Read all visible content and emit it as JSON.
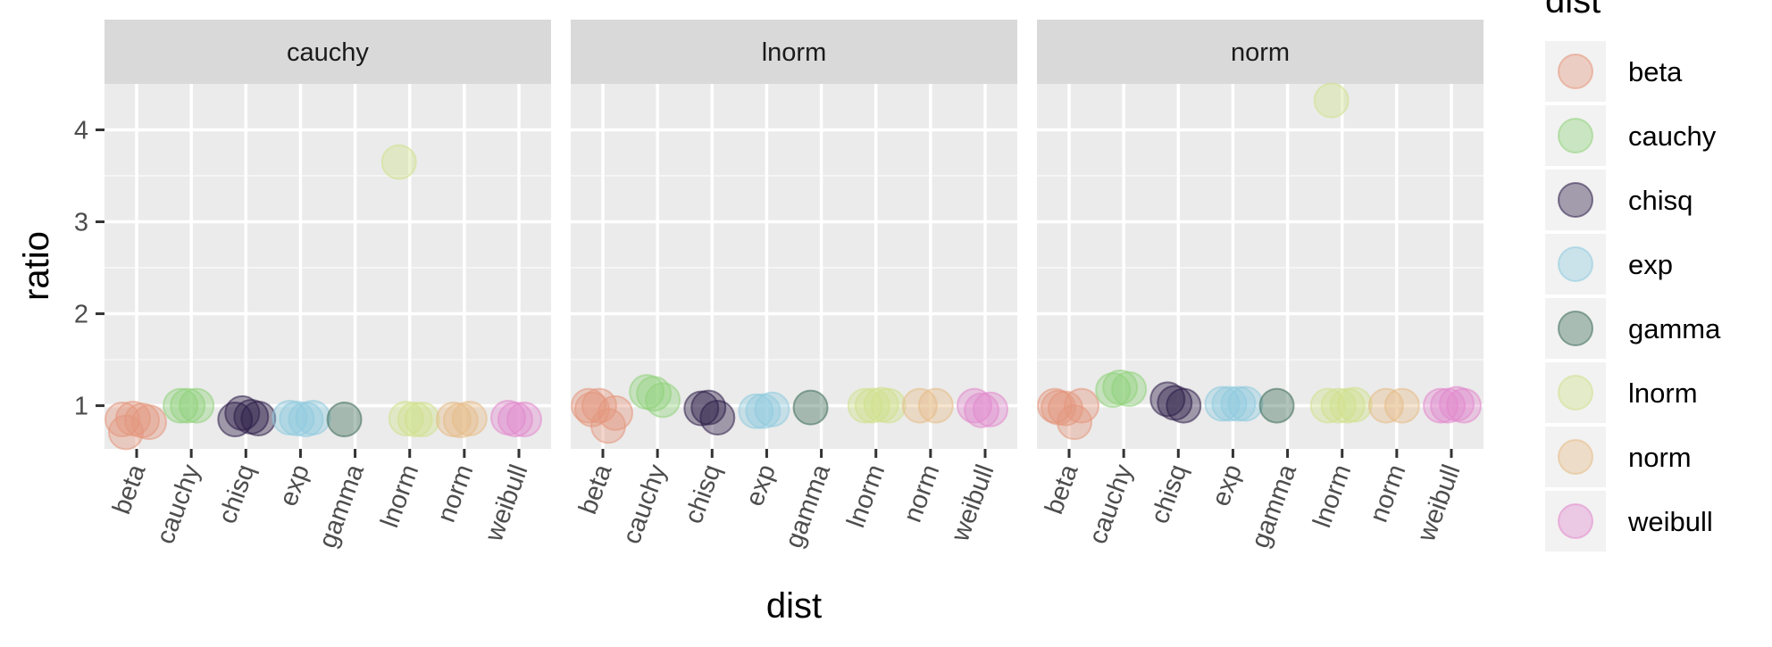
{
  "chart_data": {
    "type": "scatter",
    "xlabel": "dist",
    "ylabel": "ratio",
    "legend_title": "dist",
    "legend_position": "right",
    "facets": [
      "cauchy",
      "lnorm",
      "norm"
    ],
    "categories": [
      "beta",
      "cauchy",
      "chisq",
      "exp",
      "gamma",
      "lnorm",
      "norm",
      "weibull"
    ],
    "y_ticks": [
      1,
      2,
      3,
      4
    ],
    "ylim": [
      0.53,
      4.5
    ],
    "grid": true,
    "colors": {
      "beta": "#e3957c",
      "cauchy": "#8fd17a",
      "chisq": "#2b1b47",
      "exp": "#8ecbdf",
      "gamma": "#3c6b58",
      "lnorm": "#cfe08d",
      "norm": "#e6bc86",
      "weibull": "#e189cc"
    },
    "panels": [
      {
        "facet": "cauchy",
        "points": [
          {
            "dist": "beta",
            "values": [
              0.71,
              0.84,
              0.86,
              0.82,
              0.85
            ]
          },
          {
            "dist": "cauchy",
            "values": [
              1.0,
              1.0,
              1.0
            ]
          },
          {
            "dist": "chisq",
            "values": [
              0.85,
              0.88,
              0.92,
              0.86
            ]
          },
          {
            "dist": "exp",
            "values": [
              0.87,
              0.85,
              0.86,
              0.87
            ]
          },
          {
            "dist": "gamma",
            "values": [
              0.85
            ]
          },
          {
            "dist": "lnorm",
            "values": [
              3.65,
              0.85,
              0.86,
              0.85
            ]
          },
          {
            "dist": "norm",
            "values": [
              0.85,
              0.86,
              0.84
            ]
          },
          {
            "dist": "weibull",
            "values": [
              0.87,
              0.85,
              0.85
            ]
          }
        ]
      },
      {
        "facet": "lnorm",
        "points": [
          {
            "dist": "beta",
            "values": [
              0.96,
              0.78,
              1.0,
              0.92,
              1.0
            ]
          },
          {
            "dist": "cauchy",
            "values": [
              1.15,
              1.06,
              1.13
            ]
          },
          {
            "dist": "chisq",
            "values": [
              0.97,
              0.87,
              0.98
            ]
          },
          {
            "dist": "exp",
            "values": [
              0.94,
              0.96,
              0.94
            ]
          },
          {
            "dist": "gamma",
            "values": [
              0.98
            ]
          },
          {
            "dist": "lnorm",
            "values": [
              1.0,
              1.01,
              1.0,
              1.0
            ]
          },
          {
            "dist": "norm",
            "values": [
              1.0,
              1.0
            ]
          },
          {
            "dist": "weibull",
            "values": [
              1.0,
              0.96,
              0.95
            ]
          }
        ]
      },
      {
        "facet": "norm",
        "points": [
          {
            "dist": "beta",
            "values": [
              0.98,
              0.82,
              0.97,
              1.0,
              1.0
            ]
          },
          {
            "dist": "cauchy",
            "values": [
              1.17,
              1.18,
              1.2
            ]
          },
          {
            "dist": "chisq",
            "values": [
              1.07,
              1.0,
              1.03
            ]
          },
          {
            "dist": "exp",
            "values": [
              1.02,
              1.02,
              1.02,
              1.02
            ]
          },
          {
            "dist": "gamma",
            "values": [
              1.0
            ]
          },
          {
            "dist": "lnorm",
            "values": [
              4.32,
              1.0,
              1.0,
              1.01,
              1.0
            ]
          },
          {
            "dist": "norm",
            "values": [
              1.0,
              1.0
            ]
          },
          {
            "dist": "weibull",
            "values": [
              1.0,
              1.02,
              1.0,
              1.0
            ]
          }
        ]
      }
    ]
  }
}
